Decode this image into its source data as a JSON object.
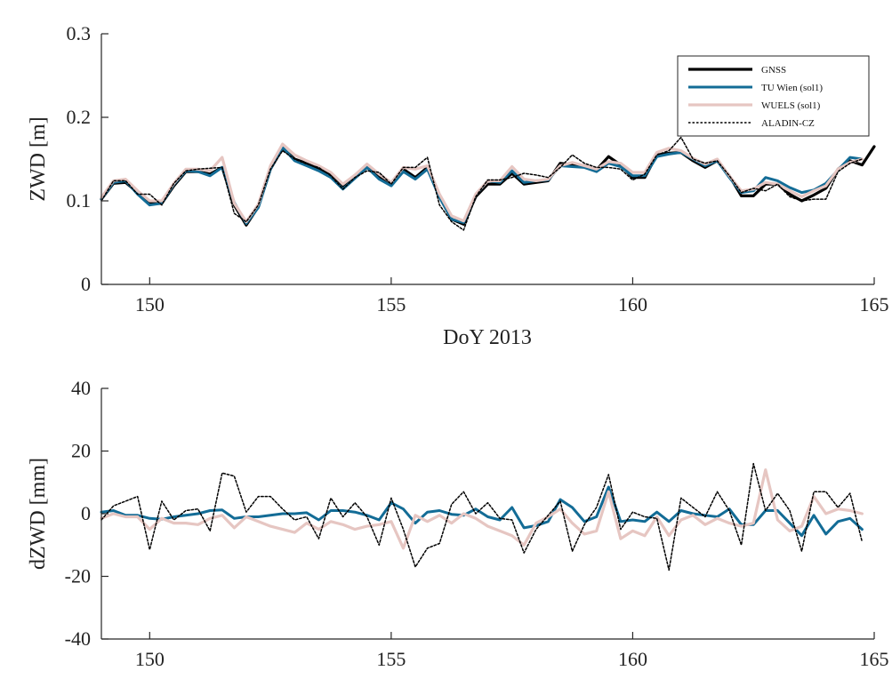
{
  "chart_data": [
    {
      "type": "line",
      "xlabel": "DoY 2013",
      "ylabel": "ZWD [m]",
      "xlim": [
        149,
        165
      ],
      "ylim": [
        0,
        0.3
      ],
      "xticks": [
        150,
        155,
        160,
        165
      ],
      "yticks": [
        0,
        0.1,
        0.2,
        0.3
      ],
      "xtick_labels": [
        "150",
        "155",
        "160",
        "165"
      ],
      "ytick_labels": [
        "0",
        "0.1",
        "0.2",
        "0.3"
      ],
      "legend_position": "top-right",
      "series": [
        {
          "name": "GNSS",
          "color": "#000000",
          "x": [
            149.0,
            149.25,
            149.5,
            149.75,
            150.0,
            150.25,
            150.5,
            150.75,
            151.0,
            151.25,
            151.5,
            151.75,
            152.0,
            152.25,
            152.5,
            152.75,
            153.0,
            153.25,
            153.5,
            153.75,
            154.0,
            154.25,
            154.5,
            154.75,
            155.0,
            155.25,
            155.5,
            155.75,
            156.0,
            156.25,
            156.5,
            156.75,
            157.0,
            157.25,
            157.5,
            157.75,
            158.0,
            158.25,
            158.5,
            158.75,
            159.0,
            159.25,
            159.5,
            159.75,
            160.0,
            160.25,
            160.5,
            160.75,
            161.0,
            161.25,
            161.5,
            161.75,
            162.0,
            162.25,
            162.5,
            162.75,
            163.0,
            163.25,
            163.5,
            163.75,
            164.0,
            164.25,
            164.5,
            164.75,
            165.0
          ],
          "values": [
            0.102,
            0.121,
            0.122,
            0.11,
            0.097,
            0.097,
            0.118,
            0.135,
            0.135,
            0.132,
            0.14,
            0.095,
            0.071,
            0.093,
            0.138,
            0.163,
            0.15,
            0.145,
            0.138,
            0.132,
            0.118,
            0.128,
            0.14,
            0.128,
            0.12,
            0.138,
            0.128,
            0.14,
            0.105,
            0.078,
            0.072,
            0.105,
            0.12,
            0.12,
            0.133,
            0.12,
            0.122,
            0.124,
            0.145,
            0.143,
            0.142,
            0.137,
            0.153,
            0.143,
            0.128,
            0.128,
            0.155,
            0.157,
            0.158,
            0.148,
            0.14,
            0.148,
            0.13,
            0.106,
            0.106,
            0.12,
            0.12,
            0.108,
            0.1,
            0.107,
            0.115,
            0.138,
            0.148,
            0.143,
            0.165
          ]
        },
        {
          "name": "TU Wien (sol1)",
          "color": "#136c96",
          "x": [
            149.0,
            149.25,
            149.5,
            149.75,
            150.0,
            150.25,
            150.5,
            150.75,
            151.0,
            151.25,
            151.5,
            151.75,
            152.0,
            152.25,
            152.5,
            152.75,
            153.0,
            153.25,
            153.5,
            153.75,
            154.0,
            154.25,
            154.5,
            154.75,
            155.0,
            155.25,
            155.5,
            155.75,
            156.0,
            156.25,
            156.5,
            156.75,
            157.0,
            157.25,
            157.5,
            157.75,
            158.0,
            158.25,
            158.5,
            158.75,
            159.0,
            159.25,
            159.5,
            159.75,
            160.0,
            160.25,
            160.5,
            160.75,
            161.0,
            161.25,
            161.5,
            161.75,
            162.0,
            162.25,
            162.5,
            162.75,
            163.0,
            163.25,
            163.5,
            163.75,
            164.0,
            164.25,
            164.5,
            164.75
          ],
          "values": [
            0.102,
            0.122,
            0.124,
            0.108,
            0.095,
            0.097,
            0.12,
            0.136,
            0.135,
            0.13,
            0.14,
            0.098,
            0.073,
            0.092,
            0.138,
            0.164,
            0.148,
            0.142,
            0.136,
            0.128,
            0.114,
            0.127,
            0.14,
            0.126,
            0.118,
            0.135,
            0.126,
            0.138,
            0.104,
            0.078,
            0.074,
            0.107,
            0.124,
            0.122,
            0.136,
            0.122,
            0.124,
            0.125,
            0.142,
            0.141,
            0.14,
            0.135,
            0.145,
            0.141,
            0.13,
            0.13,
            0.153,
            0.156,
            0.158,
            0.15,
            0.142,
            0.148,
            0.128,
            0.11,
            0.112,
            0.128,
            0.124,
            0.116,
            0.11,
            0.113,
            0.121,
            0.137,
            0.152,
            0.15
          ]
        },
        {
          "name": "WUELS (sol1)",
          "color": "#e6c6c2",
          "x": [
            149.0,
            149.25,
            149.5,
            149.75,
            150.0,
            150.25,
            150.5,
            150.75,
            151.0,
            151.25,
            151.5,
            151.75,
            152.0,
            152.25,
            152.5,
            152.75,
            153.0,
            153.25,
            153.5,
            153.75,
            154.0,
            154.25,
            154.5,
            154.75,
            155.0,
            155.25,
            155.5,
            155.75,
            156.0,
            156.25,
            156.5,
            156.75,
            157.0,
            157.25,
            157.5,
            157.75,
            158.0,
            158.25,
            158.5,
            158.75,
            159.0,
            159.25,
            159.5,
            159.75,
            160.0,
            160.25,
            160.5,
            160.75,
            161.0,
            161.25,
            161.5,
            161.75,
            162.0,
            162.25,
            162.5,
            162.75,
            163.0,
            163.25,
            163.5,
            163.75,
            164.0,
            164.25,
            164.5,
            164.75
          ],
          "values": [
            0.104,
            0.124,
            0.126,
            0.112,
            0.1,
            0.1,
            0.121,
            0.138,
            0.138,
            0.136,
            0.152,
            0.097,
            0.075,
            0.096,
            0.142,
            0.168,
            0.155,
            0.148,
            0.142,
            0.134,
            0.12,
            0.131,
            0.144,
            0.132,
            0.122,
            0.14,
            0.138,
            0.142,
            0.108,
            0.082,
            0.076,
            0.108,
            0.124,
            0.124,
            0.141,
            0.126,
            0.124,
            0.126,
            0.142,
            0.146,
            0.142,
            0.138,
            0.147,
            0.145,
            0.134,
            0.134,
            0.158,
            0.163,
            0.16,
            0.151,
            0.144,
            0.15,
            0.13,
            0.112,
            0.114,
            0.122,
            0.12,
            0.112,
            0.105,
            0.112,
            0.118,
            0.138,
            0.146,
            0.15
          ]
        },
        {
          "name": "ALADIN-CZ",
          "color": "#000000",
          "x": [
            149.0,
            149.25,
            149.5,
            149.75,
            150.0,
            150.25,
            150.5,
            150.75,
            151.0,
            151.25,
            151.5,
            151.75,
            152.0,
            152.25,
            152.5,
            152.75,
            153.0,
            153.25,
            153.5,
            153.75,
            154.0,
            154.25,
            154.5,
            154.75,
            155.0,
            155.25,
            155.5,
            155.75,
            156.0,
            156.25,
            156.5,
            156.75,
            157.0,
            157.25,
            157.5,
            157.75,
            158.0,
            158.25,
            158.5,
            158.75,
            159.0,
            159.25,
            159.5,
            159.75,
            160.0,
            160.25,
            160.5,
            160.75,
            161.0,
            161.25,
            161.5,
            161.75,
            162.0,
            162.25,
            162.5,
            162.75,
            163.0,
            163.25,
            163.5,
            163.75,
            164.0,
            164.25,
            164.5,
            164.75
          ],
          "values": [
            0.1,
            0.124,
            0.124,
            0.108,
            0.108,
            0.095,
            0.121,
            0.136,
            0.138,
            0.139,
            0.14,
            0.085,
            0.075,
            0.095,
            0.138,
            0.16,
            0.15,
            0.144,
            0.14,
            0.13,
            0.114,
            0.128,
            0.136,
            0.134,
            0.12,
            0.14,
            0.14,
            0.152,
            0.095,
            0.075,
            0.065,
            0.105,
            0.125,
            0.125,
            0.128,
            0.133,
            0.131,
            0.128,
            0.14,
            0.155,
            0.145,
            0.14,
            0.14,
            0.138,
            0.125,
            0.132,
            0.155,
            0.16,
            0.176,
            0.15,
            0.145,
            0.148,
            0.13,
            0.11,
            0.115,
            0.112,
            0.12,
            0.105,
            0.1,
            0.102,
            0.102,
            0.135,
            0.145,
            0.15
          ]
        }
      ]
    },
    {
      "type": "line",
      "xlabel": "",
      "ylabel": "dZWD [mm]",
      "xlim": [
        149,
        165
      ],
      "ylim": [
        -40,
        40
      ],
      "xticks": [
        150,
        155,
        160,
        165
      ],
      "yticks": [
        -40,
        -20,
        0,
        20,
        40
      ],
      "xtick_labels": [
        "150",
        "155",
        "160",
        "165"
      ],
      "ytick_labels": [
        "-40",
        "-20",
        "0",
        "20",
        "40"
      ],
      "series": [
        {
          "name": "TU Wien (sol1)",
          "color": "#136c96",
          "x": [
            149.0,
            149.25,
            149.5,
            149.75,
            150.0,
            150.25,
            150.5,
            150.75,
            151.0,
            151.25,
            151.5,
            151.75,
            152.0,
            152.25,
            152.5,
            152.75,
            153.0,
            153.25,
            153.5,
            153.75,
            154.0,
            154.25,
            154.5,
            154.75,
            155.0,
            155.25,
            155.5,
            155.75,
            156.0,
            156.25,
            156.5,
            156.75,
            157.0,
            157.25,
            157.5,
            157.75,
            158.0,
            158.25,
            158.5,
            158.75,
            159.0,
            159.25,
            159.5,
            159.75,
            160.0,
            160.25,
            160.5,
            160.75,
            161.0,
            161.25,
            161.5,
            161.75,
            162.0,
            162.25,
            162.5,
            162.75,
            163.0,
            163.25,
            163.5,
            163.75,
            164.0,
            164.25,
            164.5,
            164.75
          ],
          "values": [
            0.5,
            1.0,
            -0.5,
            -0.5,
            -1.5,
            -1.8,
            -1.0,
            -0.5,
            0.0,
            1.0,
            1.2,
            -1.5,
            -1.0,
            -1.0,
            -0.5,
            0.0,
            0.0,
            0.3,
            -2.0,
            1.0,
            1.0,
            0.5,
            -0.5,
            -2.0,
            3.5,
            1.5,
            -3.0,
            0.5,
            1.0,
            -0.2,
            -0.5,
            1.5,
            -1.0,
            -2.0,
            2.0,
            -4.5,
            -3.8,
            -2.5,
            4.5,
            2.0,
            -2.5,
            -1.0,
            8.5,
            -2.5,
            -2.0,
            -2.5,
            0.5,
            -2.5,
            1.0,
            0.0,
            -0.5,
            -1.0,
            1.5,
            -3.5,
            -3.5,
            1.0,
            1.0,
            -3.0,
            -7.0,
            -0.5,
            -6.5,
            -2.5,
            -1.5,
            -5.0
          ]
        },
        {
          "name": "WUELS (sol1)",
          "color": "#e6c6c2",
          "x": [
            149.0,
            149.25,
            149.5,
            149.75,
            150.0,
            150.25,
            150.5,
            150.75,
            151.0,
            151.25,
            151.5,
            151.75,
            152.0,
            152.25,
            152.5,
            152.75,
            153.0,
            153.25,
            153.5,
            153.75,
            154.0,
            154.25,
            154.5,
            154.75,
            155.0,
            155.25,
            155.5,
            155.75,
            156.0,
            156.25,
            156.5,
            156.75,
            157.0,
            157.25,
            157.5,
            157.75,
            158.0,
            158.25,
            158.5,
            158.75,
            159.0,
            159.25,
            159.5,
            159.75,
            160.0,
            160.25,
            160.5,
            160.75,
            161.0,
            161.25,
            161.5,
            161.75,
            162.0,
            162.25,
            162.5,
            162.75,
            163.0,
            163.25,
            163.5,
            163.75,
            164.0,
            164.25,
            164.5,
            164.75
          ],
          "values": [
            -1.5,
            0.0,
            -1.0,
            -1.0,
            -5.0,
            -1.5,
            -3.0,
            -3.0,
            -3.5,
            -1.5,
            -0.5,
            -4.5,
            -1.0,
            -2.5,
            -4.0,
            -5.0,
            -6.0,
            -3.0,
            -5.0,
            -2.5,
            -3.5,
            -5.0,
            -4.0,
            -3.5,
            -2.5,
            -11.0,
            -0.5,
            -2.5,
            -0.5,
            -3.0,
            0.0,
            -1.5,
            -4.0,
            -5.5,
            -7.0,
            -10.0,
            -3.0,
            -1.0,
            1.5,
            -3.0,
            -6.5,
            -5.5,
            7.0,
            -8.0,
            -5.5,
            -7.0,
            -1.0,
            -7.0,
            -2.0,
            -0.5,
            -3.5,
            -1.5,
            -3.0,
            -4.0,
            -3.0,
            14.0,
            -2.0,
            -5.5,
            -4.0,
            5.5,
            0.0,
            1.5,
            1.0,
            0.0
          ]
        },
        {
          "name": "ALADIN-CZ",
          "color": "#000000",
          "x": [
            149.0,
            149.25,
            149.5,
            149.75,
            150.0,
            150.25,
            150.5,
            150.75,
            151.0,
            151.25,
            151.5,
            151.75,
            152.0,
            152.25,
            152.5,
            152.75,
            153.0,
            153.25,
            153.5,
            153.75,
            154.0,
            154.25,
            154.5,
            154.75,
            155.0,
            155.25,
            155.5,
            155.75,
            156.0,
            156.25,
            156.5,
            156.75,
            157.0,
            157.25,
            157.5,
            157.75,
            158.0,
            158.25,
            158.5,
            158.75,
            159.0,
            159.25,
            159.5,
            159.75,
            160.0,
            160.25,
            160.5,
            160.75,
            161.0,
            161.25,
            161.5,
            161.75,
            162.0,
            162.25,
            162.5,
            162.75,
            163.0,
            163.25,
            163.5,
            163.75,
            164.0,
            164.25,
            164.5,
            164.75
          ],
          "values": [
            -2.0,
            2.5,
            4.0,
            5.5,
            -11.5,
            4.0,
            -2.0,
            1.0,
            1.5,
            -5.5,
            13.0,
            12.0,
            0.5,
            5.5,
            5.5,
            1.5,
            -2.0,
            -1.0,
            -8.0,
            5.0,
            -1.0,
            3.5,
            -1.0,
            -10.0,
            5.0,
            -5.0,
            -17.0,
            -11.0,
            -9.5,
            3.0,
            7.0,
            0.0,
            3.5,
            -1.5,
            -2.0,
            -12.5,
            -5.0,
            -0.5,
            4.0,
            -12.0,
            -3.5,
            2.0,
            12.5,
            -5.0,
            0.5,
            -1.0,
            -1.5,
            -18.0,
            5.0,
            2.0,
            -1.0,
            7.0,
            1.0,
            -10.0,
            16.0,
            1.0,
            6.5,
            1.0,
            -12.0,
            7.0,
            7.0,
            2.0,
            6.5,
            -9.0
          ]
        }
      ]
    }
  ]
}
